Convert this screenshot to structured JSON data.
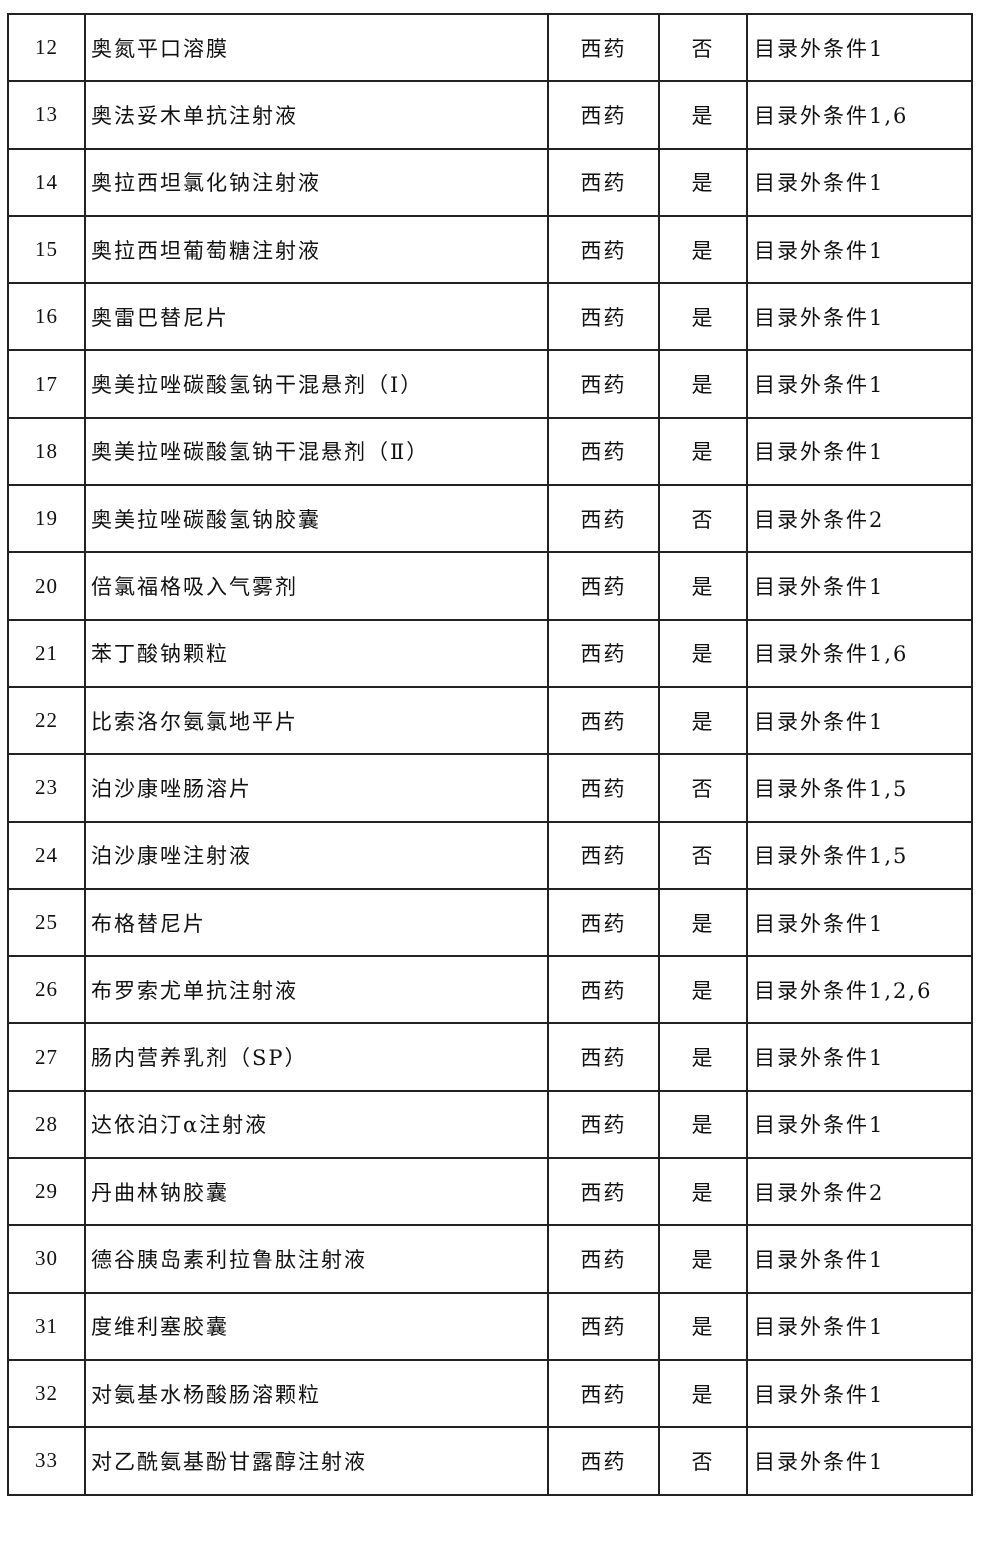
{
  "rows": [
    {
      "no": "12",
      "name": "奥氮平口溶膜",
      "category": "西药",
      "flag": "否",
      "condition": "目录外条件1"
    },
    {
      "no": "13",
      "name": "奥法妥木单抗注射液",
      "category": "西药",
      "flag": "是",
      "condition": "目录外条件1,6"
    },
    {
      "no": "14",
      "name": "奥拉西坦氯化钠注射液",
      "category": "西药",
      "flag": "是",
      "condition": "目录外条件1"
    },
    {
      "no": "15",
      "name": "奥拉西坦葡萄糖注射液",
      "category": "西药",
      "flag": "是",
      "condition": "目录外条件1"
    },
    {
      "no": "16",
      "name": "奥雷巴替尼片",
      "category": "西药",
      "flag": "是",
      "condition": "目录外条件1"
    },
    {
      "no": "17",
      "name": "奥美拉唑碳酸氢钠干混悬剂（Ⅰ）",
      "category": "西药",
      "flag": "是",
      "condition": "目录外条件1"
    },
    {
      "no": "18",
      "name": "奥美拉唑碳酸氢钠干混悬剂（Ⅱ）",
      "category": "西药",
      "flag": "是",
      "condition": "目录外条件1"
    },
    {
      "no": "19",
      "name": "奥美拉唑碳酸氢钠胶囊",
      "category": "西药",
      "flag": "否",
      "condition": "目录外条件2"
    },
    {
      "no": "20",
      "name": "倍氯福格吸入气雾剂",
      "category": "西药",
      "flag": "是",
      "condition": "目录外条件1"
    },
    {
      "no": "21",
      "name": "苯丁酸钠颗粒",
      "category": "西药",
      "flag": "是",
      "condition": "目录外条件1,6"
    },
    {
      "no": "22",
      "name": "比索洛尔氨氯地平片",
      "category": "西药",
      "flag": "是",
      "condition": "目录外条件1"
    },
    {
      "no": "23",
      "name": "泊沙康唑肠溶片",
      "category": "西药",
      "flag": "否",
      "condition": "目录外条件1,5"
    },
    {
      "no": "24",
      "name": "泊沙康唑注射液",
      "category": "西药",
      "flag": "否",
      "condition": "目录外条件1,5"
    },
    {
      "no": "25",
      "name": "布格替尼片",
      "category": "西药",
      "flag": "是",
      "condition": "目录外条件1"
    },
    {
      "no": "26",
      "name": "布罗索尤单抗注射液",
      "category": "西药",
      "flag": "是",
      "condition": "目录外条件1,2,6"
    },
    {
      "no": "27",
      "name": "肠内营养乳剂（SP）",
      "category": "西药",
      "flag": "是",
      "condition": "目录外条件1"
    },
    {
      "no": "28",
      "name": "达依泊汀α注射液",
      "category": "西药",
      "flag": "是",
      "condition": "目录外条件1"
    },
    {
      "no": "29",
      "name": "丹曲林钠胶囊",
      "category": "西药",
      "flag": "是",
      "condition": "目录外条件2"
    },
    {
      "no": "30",
      "name": "德谷胰岛素利拉鲁肽注射液",
      "category": "西药",
      "flag": "是",
      "condition": "目录外条件1"
    },
    {
      "no": "31",
      "name": "度维利塞胶囊",
      "category": "西药",
      "flag": "是",
      "condition": "目录外条件1"
    },
    {
      "no": "32",
      "name": "对氨基水杨酸肠溶颗粒",
      "category": "西药",
      "flag": "是",
      "condition": "目录外条件1"
    },
    {
      "no": "33",
      "name": "对乙酰氨基酚甘露醇注射液",
      "category": "西药",
      "flag": "否",
      "condition": "目录外条件1"
    }
  ]
}
